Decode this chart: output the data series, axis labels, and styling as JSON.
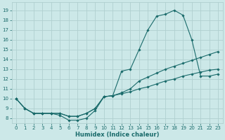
{
  "xlabel": "Humidex (Indice chaleur)",
  "background_color": "#cce8e8",
  "grid_color": "#b0d0d0",
  "line_color": "#1a6b6b",
  "xlim": [
    -0.5,
    23.5
  ],
  "ylim": [
    7.5,
    19.8
  ],
  "xticks": [
    0,
    1,
    2,
    3,
    4,
    5,
    6,
    7,
    8,
    9,
    10,
    11,
    12,
    13,
    14,
    15,
    16,
    17,
    18,
    19,
    20,
    21,
    22,
    23
  ],
  "yticks": [
    8,
    9,
    10,
    11,
    12,
    13,
    14,
    15,
    16,
    17,
    18,
    19
  ],
  "series1_x": [
    0,
    1,
    2,
    3,
    4,
    5,
    6,
    7,
    8,
    9,
    10,
    11,
    12,
    13,
    14,
    15,
    16,
    17,
    18,
    19,
    20,
    21,
    22,
    23
  ],
  "series1_y": [
    10.0,
    9.0,
    8.5,
    8.5,
    8.5,
    8.3,
    7.8,
    7.8,
    8.0,
    8.8,
    10.2,
    10.3,
    12.8,
    13.0,
    15.0,
    17.0,
    18.4,
    18.6,
    19.0,
    18.5,
    16.0,
    12.3,
    12.3,
    12.5
  ],
  "series2_x": [
    0,
    1,
    2,
    3,
    4,
    5,
    6,
    7,
    8,
    9,
    10,
    11,
    12,
    13,
    14,
    15,
    16,
    17,
    18,
    19,
    20,
    21,
    22,
    23
  ],
  "series2_y": [
    10.0,
    9.0,
    8.5,
    8.5,
    8.5,
    8.5,
    8.2,
    8.2,
    8.5,
    9.0,
    10.2,
    10.3,
    10.6,
    11.0,
    11.8,
    12.2,
    12.6,
    13.0,
    13.3,
    13.6,
    13.9,
    14.2,
    14.5,
    14.8
  ],
  "series3_x": [
    0,
    1,
    2,
    3,
    4,
    5,
    6,
    7,
    8,
    9,
    10,
    11,
    12,
    13,
    14,
    15,
    16,
    17,
    18,
    19,
    20,
    21,
    22,
    23
  ],
  "series3_y": [
    10.0,
    9.0,
    8.5,
    8.5,
    8.5,
    8.5,
    8.2,
    8.2,
    8.5,
    9.0,
    10.2,
    10.3,
    10.5,
    10.7,
    11.0,
    11.2,
    11.5,
    11.8,
    12.0,
    12.3,
    12.5,
    12.7,
    12.9,
    13.0
  ]
}
